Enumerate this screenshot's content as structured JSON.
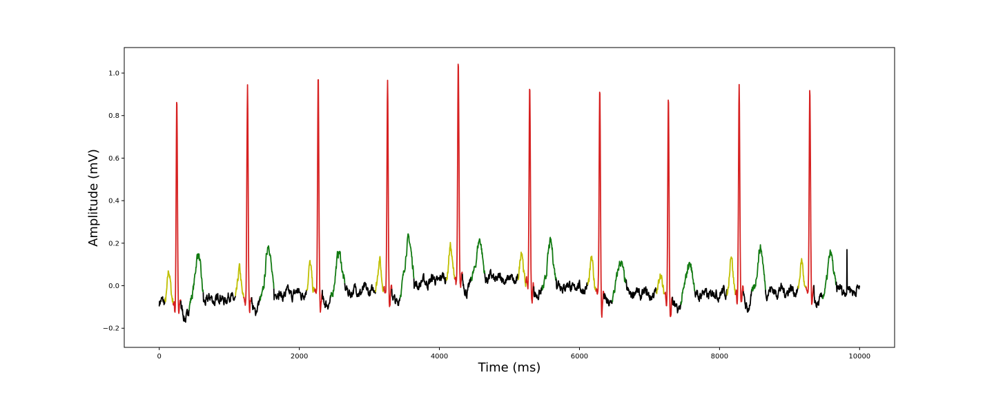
{
  "chart_data": {
    "type": "line",
    "title": "",
    "xlabel": "Time (ms)",
    "ylabel": "Amplitude (mV)",
    "xlim": [
      -500,
      10500
    ],
    "ylim": [
      -0.29,
      1.12
    ],
    "xticks": [
      0,
      2000,
      4000,
      6000,
      8000,
      10000
    ],
    "xtick_labels": [
      "0",
      "2000",
      "4000",
      "6000",
      "8000",
      "10000"
    ],
    "yticks": [
      -0.2,
      0.0,
      0.2,
      0.4,
      0.6,
      0.8,
      1.0
    ],
    "ytick_labels": [
      "−0.2",
      "0.0",
      "0.2",
      "0.4",
      "0.6",
      "0.8",
      "1.0"
    ],
    "grid": false,
    "colors": {
      "baseline": "#000000",
      "p_wave": "#bfbf00",
      "qrs": "#d62020",
      "t_wave": "#117a11"
    },
    "beats": [
      {
        "r_time": 250,
        "r_peak": 0.9,
        "baseline": -0.08,
        "p_amp": 0.07,
        "t_amp": 0.09,
        "s_min": -0.15
      },
      {
        "r_time": 1260,
        "r_peak": 0.93,
        "baseline": -0.05,
        "p_amp": 0.07,
        "t_amp": 0.13,
        "s_min": -0.14
      },
      {
        "r_time": 2270,
        "r_peak": 0.98,
        "baseline": -0.03,
        "p_amp": 0.11,
        "t_amp": 0.11,
        "s_min": -0.13
      },
      {
        "r_time": 3260,
        "r_peak": 0.99,
        "baseline": -0.02,
        "p_amp": 0.14,
        "t_amp": 0.16,
        "s_min": -0.1
      },
      {
        "r_time": 4270,
        "r_peak": 1.06,
        "baseline": 0.05,
        "p_amp": 0.19,
        "t_amp": 0.17,
        "s_min": -0.04
      },
      {
        "r_time": 5290,
        "r_peak": 0.95,
        "baseline": 0.02,
        "p_amp": 0.16,
        "t_amp": 0.16,
        "s_min": -0.1
      },
      {
        "r_time": 6290,
        "r_peak": 0.95,
        "baseline": -0.02,
        "p_amp": 0.13,
        "t_amp": 0.08,
        "s_min": -0.14
      },
      {
        "r_time": 7270,
        "r_peak": 0.9,
        "baseline": -0.05,
        "p_amp": 0.07,
        "t_amp": 0.06,
        "s_min": -0.17
      },
      {
        "r_time": 8280,
        "r_peak": 0.95,
        "baseline": -0.03,
        "p_amp": 0.15,
        "t_amp": 0.12,
        "s_min": -0.11
      },
      {
        "r_time": 9290,
        "r_peak": 0.91,
        "baseline": -0.02,
        "p_amp": 0.11,
        "t_amp": 0.09,
        "s_min": -0.11
      }
    ],
    "extra_spike": {
      "time": 9820,
      "value": 0.17
    },
    "x_range": [
      0,
      10000
    ]
  }
}
